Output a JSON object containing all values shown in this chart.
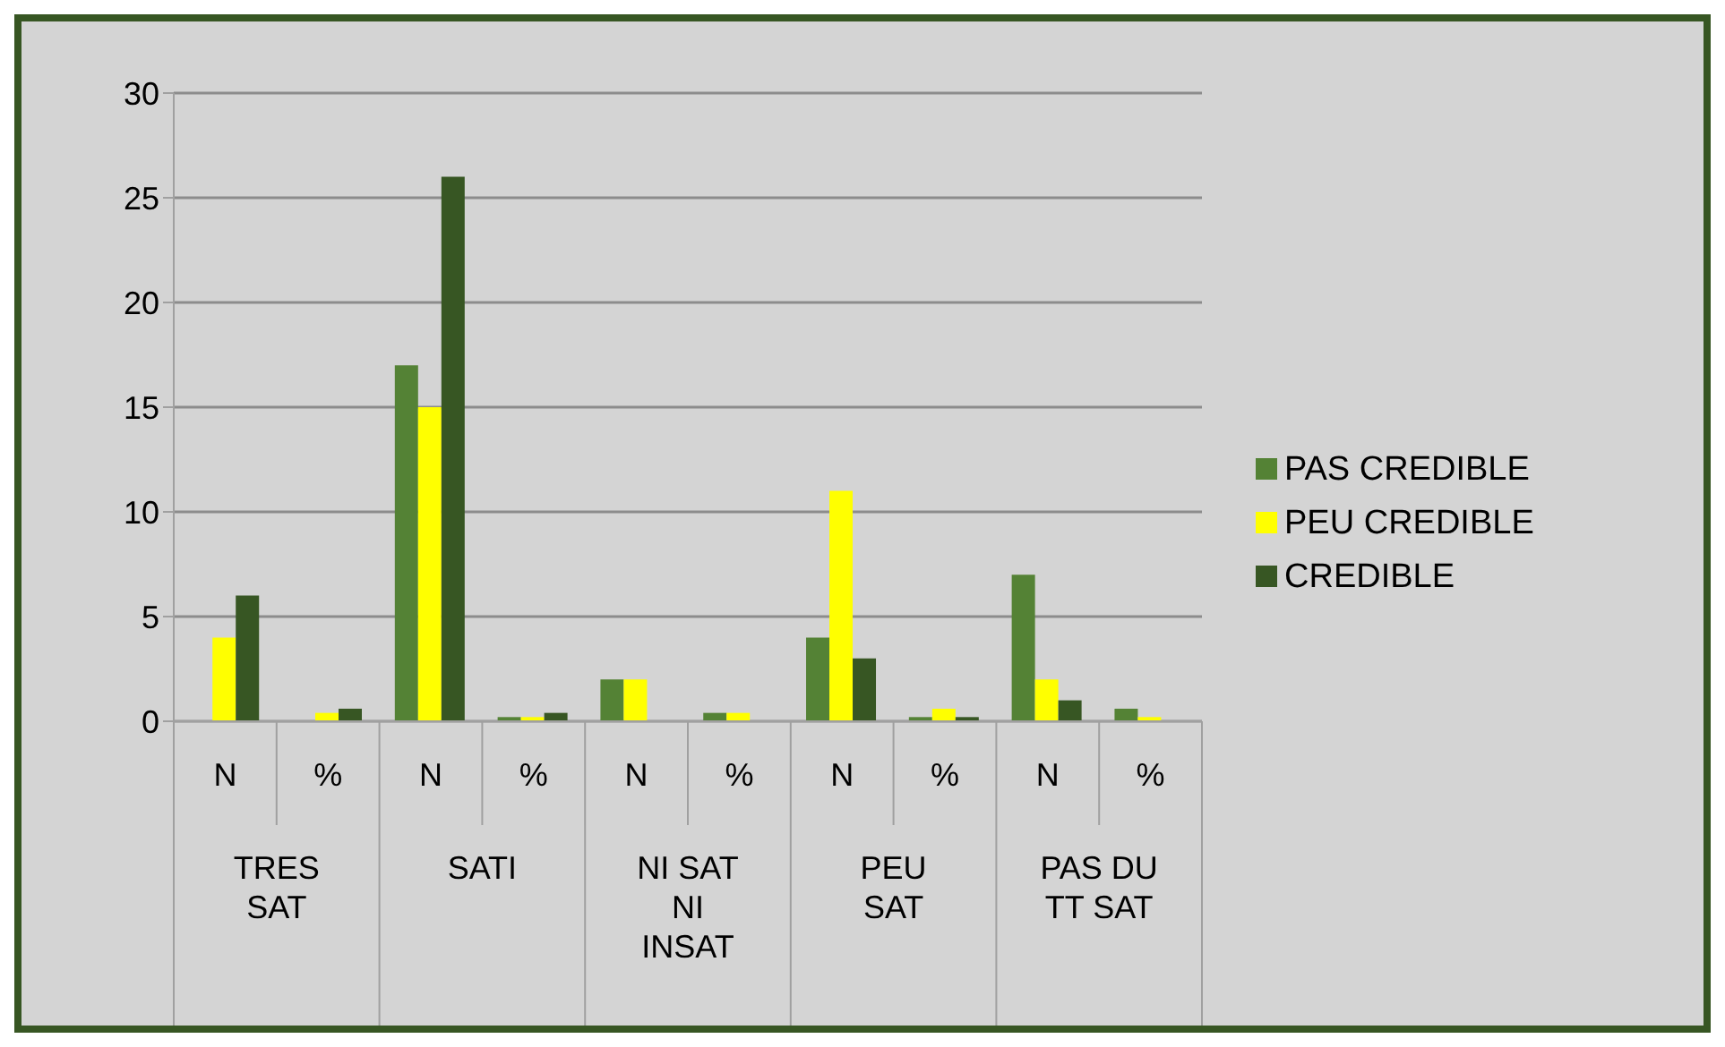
{
  "chart_data": {
    "type": "bar",
    "categories": [
      "N",
      "%",
      "N",
      "%",
      "N",
      "%",
      "N",
      "%",
      "N",
      "%"
    ],
    "annotations": [
      "TRES SAT",
      "SATI",
      "NI SAT NI INSAT",
      "PEU SAT",
      "PAS DU TT SAT"
    ],
    "series": [
      {
        "name": "PAS CREDIBLE",
        "color": "#548235",
        "values": [
          0,
          0,
          17,
          0.2,
          2,
          0.4,
          4,
          0.2,
          7,
          0.6
        ]
      },
      {
        "name": "PEU CREDIBLE",
        "color": "#ffff00",
        "values": [
          4,
          0.4,
          15,
          0.2,
          2,
          0.4,
          11,
          0.6,
          2,
          0.2
        ]
      },
      {
        "name": "CREDIBLE",
        "color": "#375623",
        "values": [
          6,
          0.6,
          26,
          0.4,
          0,
          0,
          3,
          0.2,
          1,
          0
        ]
      }
    ],
    "ylim": [
      0,
      30
    ],
    "yticks": [
      0,
      5,
      10,
      15,
      20,
      25,
      30
    ],
    "grid": "y",
    "legend": "right"
  }
}
